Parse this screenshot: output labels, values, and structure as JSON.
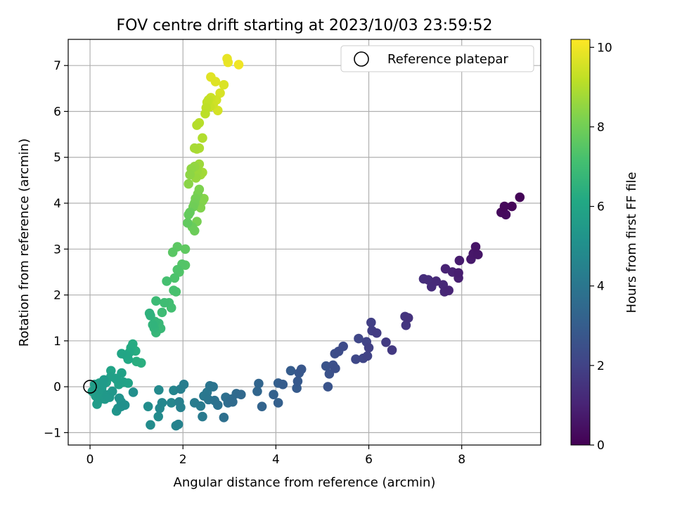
{
  "chart_data": {
    "type": "scatter",
    "title": "FOV centre drift starting at 2023/10/03 23:59:52",
    "xlabel": "Angular distance from reference (arcmin)",
    "ylabel": "Rotation from reference (arcmin)",
    "xlim": [
      -0.47,
      9.7
    ],
    "ylim": [
      -1.27,
      7.57
    ],
    "x_ticks": [
      0,
      2,
      4,
      6,
      8
    ],
    "y_ticks": [
      -1,
      0,
      1,
      2,
      3,
      4,
      5,
      6,
      7
    ],
    "grid": true,
    "legend": {
      "placement": "top-right",
      "entries": [
        "Reference platepar"
      ]
    },
    "reference_point": {
      "x": 0,
      "y": 0
    },
    "colorbar": {
      "label": "Hours from first FF file",
      "range": [
        0,
        10.2
      ],
      "ticks": [
        0,
        2,
        4,
        6,
        8,
        10
      ],
      "colormap": "viridis"
    },
    "points": [
      [
        9.25,
        4.13,
        0.1
      ],
      [
        9.08,
        3.93,
        0.15
      ],
      [
        8.92,
        3.93,
        0.2
      ],
      [
        8.85,
        3.8,
        0.25
      ],
      [
        8.95,
        3.75,
        0.3
      ],
      [
        8.3,
        3.05,
        0.55
      ],
      [
        8.35,
        2.88,
        0.6
      ],
      [
        8.25,
        2.9,
        0.65
      ],
      [
        8.2,
        2.78,
        0.7
      ],
      [
        7.95,
        2.75,
        0.8
      ],
      [
        7.93,
        2.48,
        0.85
      ],
      [
        7.93,
        2.37,
        0.9
      ],
      [
        7.8,
        2.5,
        0.95
      ],
      [
        7.65,
        2.57,
        1.0
      ],
      [
        7.72,
        2.1,
        1.05
      ],
      [
        7.63,
        2.07,
        1.1
      ],
      [
        7.6,
        2.22,
        1.15
      ],
      [
        7.45,
        2.3,
        1.2
      ],
      [
        7.35,
        2.18,
        1.25
      ],
      [
        7.28,
        2.33,
        1.3
      ],
      [
        7.18,
        2.35,
        1.35
      ],
      [
        6.85,
        1.5,
        1.5
      ],
      [
        6.78,
        1.53,
        1.55
      ],
      [
        6.8,
        1.34,
        1.6
      ],
      [
        6.5,
        0.8,
        1.7
      ],
      [
        6.37,
        0.97,
        1.75
      ],
      [
        6.17,
        1.17,
        1.8
      ],
      [
        6.07,
        1.22,
        1.85
      ],
      [
        6.05,
        1.4,
        1.9
      ],
      [
        6.0,
        0.85,
        1.95
      ],
      [
        5.97,
        0.67,
        2.0
      ],
      [
        5.95,
        0.98,
        2.05
      ],
      [
        5.88,
        0.62,
        2.1
      ],
      [
        5.78,
        1.05,
        2.15
      ],
      [
        5.72,
        0.6,
        2.2
      ],
      [
        5.45,
        0.88,
        2.3
      ],
      [
        5.35,
        0.77,
        2.35
      ],
      [
        5.27,
        0.72,
        2.4
      ],
      [
        5.28,
        0.4,
        2.45
      ],
      [
        5.23,
        0.47,
        2.5
      ],
      [
        5.15,
        0.28,
        2.55
      ],
      [
        5.08,
        0.45,
        2.6
      ],
      [
        5.12,
        0.0,
        2.65
      ],
      [
        4.55,
        0.38,
        2.75
      ],
      [
        4.5,
        0.3,
        2.8
      ],
      [
        4.47,
        0.12,
        2.85
      ],
      [
        4.45,
        -0.03,
        2.9
      ],
      [
        4.32,
        0.35,
        2.95
      ],
      [
        4.15,
        0.05,
        3.0
      ],
      [
        4.05,
        0.08,
        3.05
      ],
      [
        4.05,
        -0.35,
        3.1
      ],
      [
        3.95,
        -0.17,
        3.15
      ],
      [
        3.7,
        -0.43,
        3.25
      ],
      [
        3.63,
        0.07,
        3.3
      ],
      [
        3.6,
        -0.1,
        3.35
      ],
      [
        3.25,
        -0.17,
        3.45
      ],
      [
        3.15,
        -0.15,
        3.5
      ],
      [
        3.07,
        -0.33,
        3.55
      ],
      [
        3.05,
        -0.27,
        3.6
      ],
      [
        2.97,
        -0.35,
        3.65
      ],
      [
        2.92,
        -0.23,
        3.7
      ],
      [
        2.88,
        -0.67,
        3.75
      ],
      [
        2.75,
        -0.4,
        3.8
      ],
      [
        2.68,
        -0.3,
        3.85
      ],
      [
        2.65,
        0.0,
        3.9
      ],
      [
        2.58,
        0.02,
        3.95
      ],
      [
        2.55,
        -0.28,
        4.0
      ],
      [
        2.52,
        -0.12,
        4.05
      ],
      [
        2.45,
        -0.2,
        4.1
      ],
      [
        2.42,
        -0.65,
        4.15
      ],
      [
        2.38,
        -0.42,
        4.2
      ],
      [
        2.25,
        -0.35,
        4.25
      ],
      [
        2.02,
        0.05,
        4.3
      ],
      [
        1.95,
        -0.05,
        4.35
      ],
      [
        1.92,
        -0.33,
        4.4
      ],
      [
        1.95,
        -0.45,
        4.45
      ],
      [
        1.9,
        -0.82,
        4.5
      ],
      [
        1.85,
        -0.85,
        4.55
      ],
      [
        1.8,
        -0.08,
        4.6
      ],
      [
        1.75,
        -0.35,
        4.65
      ],
      [
        1.55,
        -0.35,
        4.7
      ],
      [
        1.5,
        -0.47,
        4.75
      ],
      [
        1.48,
        -0.07,
        4.8
      ],
      [
        1.47,
        -0.65,
        4.85
      ],
      [
        1.3,
        -0.83,
        4.9
      ],
      [
        1.25,
        -0.43,
        4.95
      ],
      [
        0.93,
        -0.12,
        5.0
      ],
      [
        0.75,
        -0.4,
        5.05
      ],
      [
        0.67,
        -0.43,
        5.1
      ],
      [
        0.67,
        -0.33,
        5.15
      ],
      [
        0.63,
        -0.25,
        5.2
      ],
      [
        0.6,
        -0.47,
        5.25
      ],
      [
        0.57,
        -0.53,
        5.3
      ],
      [
        0.48,
        -0.1,
        5.35
      ],
      [
        0.42,
        -0.23,
        5.4
      ],
      [
        0.37,
        -0.18,
        5.42
      ],
      [
        0.32,
        -0.27,
        5.45
      ],
      [
        0.3,
        0.15,
        5.48
      ],
      [
        0.28,
        0.05,
        5.5
      ],
      [
        0.25,
        -0.05,
        5.52
      ],
      [
        0.2,
        -0.15,
        5.55
      ],
      [
        0.18,
        -0.3,
        5.58
      ],
      [
        0.15,
        -0.38,
        5.6
      ],
      [
        0.12,
        -0.2,
        5.62
      ],
      [
        0.1,
        0.05,
        5.65
      ],
      [
        0.05,
        -0.1,
        5.68
      ],
      [
        0.2,
        0.08,
        5.7
      ],
      [
        0.35,
        0.1,
        5.72
      ],
      [
        0.45,
        0.22,
        5.75
      ],
      [
        0.55,
        0.18,
        5.78
      ],
      [
        0.62,
        0.05,
        5.8
      ],
      [
        0.68,
        0.3,
        5.82
      ],
      [
        0.72,
        0.1,
        5.85
      ],
      [
        0.82,
        0.08,
        5.88
      ],
      [
        0.45,
        0.35,
        5.9
      ],
      [
        0.58,
        0.15,
        5.92
      ],
      [
        0.68,
        0.72,
        6.0
      ],
      [
        0.78,
        0.68,
        6.05
      ],
      [
        0.82,
        0.6,
        6.1
      ],
      [
        0.85,
        0.75,
        6.15
      ],
      [
        0.88,
        0.85,
        6.2
      ],
      [
        0.92,
        0.93,
        6.25
      ],
      [
        0.98,
        0.78,
        6.3
      ],
      [
        1.0,
        0.55,
        6.35
      ],
      [
        1.1,
        0.52,
        6.4
      ],
      [
        1.28,
        1.6,
        6.5
      ],
      [
        1.3,
        1.55,
        6.55
      ],
      [
        1.35,
        1.35,
        6.6
      ],
      [
        1.38,
        1.28,
        6.65
      ],
      [
        1.4,
        1.42,
        6.7
      ],
      [
        1.42,
        1.18,
        6.75
      ],
      [
        1.48,
        1.38,
        6.8
      ],
      [
        1.52,
        1.27,
        6.85
      ],
      [
        1.42,
        1.87,
        6.9
      ],
      [
        1.55,
        1.62,
        6.95
      ],
      [
        1.6,
        1.83,
        7.0
      ],
      [
        1.7,
        1.83,
        7.05
      ],
      [
        1.75,
        1.72,
        7.1
      ],
      [
        1.65,
        2.3,
        7.15
      ],
      [
        1.8,
        2.1,
        7.2
      ],
      [
        1.85,
        2.07,
        7.25
      ],
      [
        1.82,
        2.37,
        7.3
      ],
      [
        1.88,
        2.55,
        7.35
      ],
      [
        1.92,
        2.5,
        7.4
      ],
      [
        1.98,
        2.67,
        7.45
      ],
      [
        2.05,
        2.65,
        7.5
      ],
      [
        1.78,
        2.93,
        7.55
      ],
      [
        1.88,
        3.05,
        7.6
      ],
      [
        2.05,
        3.0,
        7.65
      ],
      [
        2.1,
        3.57,
        7.7
      ],
      [
        2.12,
        3.75,
        7.75
      ],
      [
        2.15,
        3.8,
        7.8
      ],
      [
        2.2,
        3.48,
        7.85
      ],
      [
        2.25,
        3.4,
        7.9
      ],
      [
        2.22,
        3.92,
        7.95
      ],
      [
        2.25,
        4.0,
        8.0
      ],
      [
        2.27,
        4.1,
        8.05
      ],
      [
        2.3,
        3.6,
        8.1
      ],
      [
        2.32,
        4.2,
        8.15
      ],
      [
        2.35,
        4.3,
        8.2
      ],
      [
        2.38,
        3.9,
        8.25
      ],
      [
        2.42,
        4.05,
        8.3
      ],
      [
        2.45,
        4.1,
        8.35
      ],
      [
        2.12,
        4.42,
        8.4
      ],
      [
        2.15,
        4.62,
        8.45
      ],
      [
        2.18,
        4.75,
        8.5
      ],
      [
        2.25,
        4.8,
        8.55
      ],
      [
        2.28,
        4.55,
        8.6
      ],
      [
        2.3,
        4.7,
        8.65
      ],
      [
        2.35,
        4.85,
        8.7
      ],
      [
        2.38,
        4.62,
        8.75
      ],
      [
        2.42,
        4.67,
        8.8
      ],
      [
        2.25,
        5.2,
        8.85
      ],
      [
        2.3,
        5.18,
        8.9
      ],
      [
        2.35,
        5.2,
        8.95
      ],
      [
        2.42,
        5.42,
        9.0
      ],
      [
        2.3,
        5.7,
        9.05
      ],
      [
        2.35,
        5.75,
        9.1
      ],
      [
        2.48,
        5.95,
        9.15
      ],
      [
        2.5,
        6.08,
        9.2
      ],
      [
        2.52,
        6.2,
        9.25
      ],
      [
        2.55,
        6.25,
        9.3
      ],
      [
        2.58,
        6.1,
        9.35
      ],
      [
        2.6,
        6.3,
        9.4
      ],
      [
        2.65,
        6.15,
        9.45
      ],
      [
        2.72,
        6.25,
        9.5
      ],
      [
        2.75,
        6.02,
        9.55
      ],
      [
        2.8,
        6.4,
        9.6
      ],
      [
        2.88,
        6.58,
        9.65
      ],
      [
        2.7,
        6.65,
        9.7
      ],
      [
        2.6,
        6.75,
        9.75
      ],
      [
        2.95,
        7.15,
        9.85
      ],
      [
        2.97,
        7.07,
        9.9
      ],
      [
        3.2,
        7.02,
        10.0
      ]
    ]
  }
}
